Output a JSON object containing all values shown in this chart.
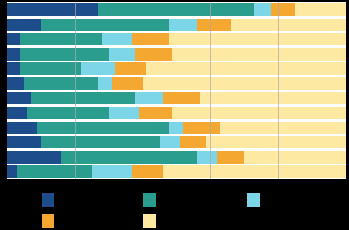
{
  "colors": [
    "#1e4d8c",
    "#2a9d8f",
    "#7dd6e8",
    "#f4a832",
    "#fde9a2"
  ],
  "legend_colors": [
    "#1e4d8c",
    "#2a9d8f",
    "#7dd6e8",
    "#f4a832",
    "#fde9a2"
  ],
  "rows": [
    [
      27,
      46,
      5,
      7,
      15
    ],
    [
      10,
      38,
      8,
      10,
      34
    ],
    [
      4,
      24,
      9,
      11,
      52
    ],
    [
      4,
      26,
      8,
      11,
      51
    ],
    [
      4,
      18,
      10,
      9,
      59
    ],
    [
      5,
      22,
      4,
      9,
      60
    ],
    [
      7,
      31,
      8,
      11,
      43
    ],
    [
      6,
      24,
      9,
      10,
      51
    ],
    [
      9,
      39,
      4,
      11,
      37
    ],
    [
      10,
      35,
      6,
      8,
      41
    ],
    [
      16,
      40,
      6,
      8,
      30
    ],
    [
      3,
      22,
      12,
      9,
      54
    ]
  ],
  "fig_bg": "#000000",
  "plot_bg": "#ffffff",
  "figsize": [
    4.33,
    2.85
  ],
  "dpi": 100,
  "grid_color": "#aaaaaa",
  "grid_lw": 0.5
}
